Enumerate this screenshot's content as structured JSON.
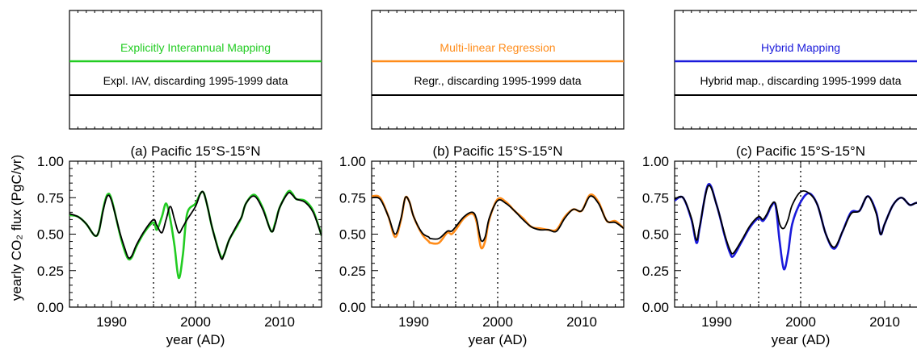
{
  "chart_data": [
    {
      "type": "line",
      "title": "(a) Pacific 15°S-15°N",
      "xlabel": "year (AD)",
      "ylabel": "yearly CO₂ flux (PgC/yr)",
      "xlim": [
        1985,
        2015
      ],
      "ylim": [
        0,
        1.0
      ],
      "xticks": [
        1990,
        2000,
        2010
      ],
      "yticks": [
        "0.00",
        "0.25",
        "0.50",
        "0.75",
        "1.00"
      ],
      "vlines": [
        1995,
        2000
      ],
      "legend": {
        "method": "Explicitly Interannual Mapping",
        "reference": "Expl. IAV, discarding 1995-1999 data"
      },
      "colors": {
        "method": "#22cc22",
        "reference": "#000000"
      },
      "series": [
        {
          "name": "Explicitly Interannual Mapping",
          "x": [
            1985,
            1986,
            1987,
            1988,
            1988.5,
            1989,
            1989.5,
            1990,
            1991,
            1991.6,
            1992,
            1992.4,
            1993,
            1994,
            1995,
            1995.4,
            1996,
            1996.5,
            1997,
            1997.5,
            1998,
            1998.5,
            1999,
            2000,
            2000.6,
            2001,
            2001.5,
            2002,
            2003,
            2003.4,
            2004,
            2005,
            2005.5,
            2006,
            2007,
            2008,
            2009,
            2009.5,
            2010,
            2011,
            2011.5,
            2012,
            2013,
            2014,
            2015
          ],
          "y": [
            0.63,
            0.62,
            0.57,
            0.49,
            0.52,
            0.67,
            0.77,
            0.74,
            0.5,
            0.38,
            0.33,
            0.34,
            0.42,
            0.52,
            0.58,
            0.53,
            0.62,
            0.71,
            0.6,
            0.42,
            0.2,
            0.36,
            0.64,
            0.71,
            0.78,
            0.78,
            0.67,
            0.54,
            0.35,
            0.36,
            0.46,
            0.56,
            0.62,
            0.71,
            0.77,
            0.68,
            0.52,
            0.58,
            0.68,
            0.79,
            0.78,
            0.74,
            0.73,
            0.66,
            0.49
          ]
        },
        {
          "name": "Expl. IAV, discarding 1995-1999 data",
          "x": [
            1985,
            1986,
            1987,
            1988,
            1988.5,
            1989,
            1989.5,
            1990,
            1991,
            1991.6,
            1992,
            1992.4,
            1993,
            1994,
            1995,
            1995.4,
            1996,
            1996.5,
            1997,
            1997.5,
            1998,
            1998.5,
            1999,
            2000,
            2000.6,
            2001,
            2001.5,
            2002,
            2003,
            2003.4,
            2004,
            2005,
            2005.5,
            2006,
            2007,
            2008,
            2009,
            2009.5,
            2010,
            2011,
            2011.5,
            2012,
            2013,
            2014,
            2015
          ],
          "y": [
            0.64,
            0.62,
            0.57,
            0.49,
            0.52,
            0.66,
            0.76,
            0.73,
            0.51,
            0.4,
            0.34,
            0.35,
            0.43,
            0.53,
            0.6,
            0.56,
            0.51,
            0.6,
            0.69,
            0.6,
            0.51,
            0.55,
            0.6,
            0.69,
            0.78,
            0.78,
            0.67,
            0.54,
            0.34,
            0.36,
            0.46,
            0.57,
            0.62,
            0.71,
            0.76,
            0.67,
            0.52,
            0.57,
            0.68,
            0.78,
            0.77,
            0.74,
            0.72,
            0.65,
            0.49
          ]
        }
      ]
    },
    {
      "type": "line",
      "title": "(b) Pacific 15°S-15°N",
      "xlabel": "year (AD)",
      "ylabel": "",
      "xlim": [
        1985,
        2015
      ],
      "ylim": [
        0,
        1.0
      ],
      "xticks": [
        1990,
        2000,
        2010
      ],
      "yticks": [
        "0.00",
        "0.25",
        "0.50",
        "0.75",
        "1.00"
      ],
      "vlines": [
        1995,
        2000
      ],
      "legend": {
        "method": "Multi-linear Regression",
        "reference": "Regr., discarding 1995-1999 data"
      },
      "colors": {
        "method": "#ff8c1a",
        "reference": "#000000"
      },
      "series": [
        {
          "name": "Multi-linear Regression",
          "x": [
            1985,
            1986,
            1987,
            1987.8,
            1988.5,
            1989,
            1989.5,
            1990,
            1991,
            1991.8,
            1992,
            1993,
            1994,
            1994.5,
            1995,
            1996,
            1997,
            1997.5,
            1998,
            1998.5,
            1999,
            2000,
            2001,
            2002,
            2003,
            2004,
            2005,
            2006,
            2007,
            2008,
            2009,
            2010,
            2011,
            2012,
            2013,
            2014,
            2015
          ],
          "y": [
            0.76,
            0.75,
            0.62,
            0.48,
            0.6,
            0.75,
            0.72,
            0.62,
            0.5,
            0.45,
            0.44,
            0.44,
            0.51,
            0.5,
            0.53,
            0.61,
            0.64,
            0.58,
            0.41,
            0.45,
            0.6,
            0.74,
            0.72,
            0.66,
            0.61,
            0.55,
            0.54,
            0.53,
            0.53,
            0.62,
            0.67,
            0.66,
            0.77,
            0.72,
            0.59,
            0.59,
            0.54
          ]
        },
        {
          "name": "Regr., discarding 1995-1999 data",
          "x": [
            1985,
            1986,
            1987,
            1987.8,
            1988.5,
            1989,
            1989.5,
            1990,
            1991,
            1991.8,
            1992,
            1993,
            1994,
            1994.5,
            1995,
            1996,
            1997,
            1997.5,
            1998,
            1998.5,
            1999,
            2000,
            2001,
            2002,
            2003,
            2004,
            2005,
            2006,
            2007,
            2008,
            2009,
            2010,
            2011,
            2012,
            2013,
            2014,
            2015
          ],
          "y": [
            0.75,
            0.74,
            0.62,
            0.5,
            0.61,
            0.75,
            0.72,
            0.62,
            0.51,
            0.48,
            0.47,
            0.47,
            0.52,
            0.52,
            0.55,
            0.62,
            0.65,
            0.6,
            0.46,
            0.48,
            0.61,
            0.73,
            0.71,
            0.66,
            0.6,
            0.55,
            0.53,
            0.53,
            0.52,
            0.61,
            0.67,
            0.66,
            0.76,
            0.71,
            0.59,
            0.58,
            0.54
          ]
        }
      ]
    },
    {
      "type": "line",
      "title": "(c) Pacific 15°S-15°N",
      "xlabel": "year (AD)",
      "ylabel": "",
      "xlim": [
        1985,
        2015
      ],
      "ylim": [
        0,
        1.0
      ],
      "xticks": [
        1990,
        2000,
        2010
      ],
      "yticks": [
        "0.00",
        "0.25",
        "0.50",
        "0.75",
        "1.00"
      ],
      "vlines": [
        1995,
        2000
      ],
      "legend": {
        "method": "Hybrid Mapping",
        "reference": "Hybrid map., discarding 1995-1999 data"
      },
      "colors": {
        "method": "#1a1adb",
        "reference": "#000000"
      },
      "series": [
        {
          "name": "Hybrid Mapping",
          "x": [
            1985,
            1986,
            1987,
            1987.6,
            1988,
            1989,
            1990,
            1991,
            1991.6,
            1992,
            1993,
            1994,
            1995,
            1995.5,
            1996,
            1996.5,
            1997,
            1997.5,
            1998,
            1998.5,
            1999,
            2000,
            2001,
            2002,
            2003,
            2004,
            2005,
            2006,
            2007,
            2008,
            2009,
            2009.5,
            2010,
            2011,
            2012,
            2013,
            2014,
            2015
          ],
          "y": [
            0.73,
            0.75,
            0.6,
            0.44,
            0.55,
            0.84,
            0.7,
            0.48,
            0.37,
            0.35,
            0.45,
            0.55,
            0.61,
            0.59,
            0.63,
            0.69,
            0.7,
            0.45,
            0.26,
            0.37,
            0.57,
            0.72,
            0.78,
            0.7,
            0.5,
            0.4,
            0.52,
            0.65,
            0.66,
            0.76,
            0.65,
            0.5,
            0.57,
            0.7,
            0.75,
            0.7,
            0.71,
            0.6
          ]
        },
        {
          "name": "Hybrid map., discarding 1995-1999 data",
          "x": [
            1985,
            1986,
            1987,
            1987.6,
            1988,
            1989,
            1990,
            1991,
            1991.6,
            1992,
            1993,
            1994,
            1995,
            1995.5,
            1996,
            1996.5,
            1997,
            1997.5,
            1998,
            1998.5,
            1999,
            2000,
            2001,
            2002,
            2003,
            2004,
            2005,
            2006,
            2007,
            2008,
            2009,
            2009.5,
            2010,
            2011,
            2012,
            2013,
            2014,
            2015
          ],
          "y": [
            0.74,
            0.75,
            0.61,
            0.46,
            0.56,
            0.83,
            0.7,
            0.49,
            0.39,
            0.37,
            0.46,
            0.56,
            0.62,
            0.6,
            0.64,
            0.7,
            0.71,
            0.57,
            0.54,
            0.6,
            0.7,
            0.79,
            0.78,
            0.7,
            0.5,
            0.41,
            0.52,
            0.64,
            0.66,
            0.76,
            0.64,
            0.5,
            0.57,
            0.7,
            0.75,
            0.7,
            0.71,
            0.6
          ]
        }
      ]
    }
  ]
}
